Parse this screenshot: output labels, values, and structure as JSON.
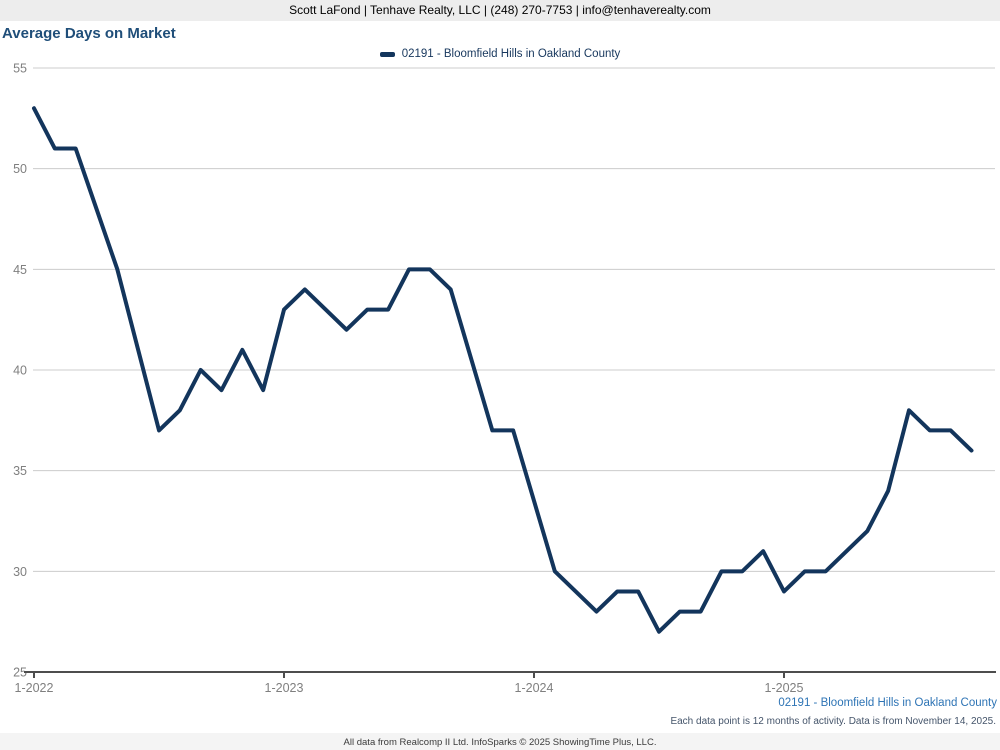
{
  "header": {
    "contact_line": "Scott LaFond | Tenhave Realty, LLC | (248) 270-7753 | info@tenhaverealty.com"
  },
  "title": "Average Days on Market",
  "legend": {
    "label": "02191 - Bloomfield Hills in Oakland County"
  },
  "chart_data": {
    "type": "line",
    "title": "Average Days on Market",
    "series_name": "02191 - Bloomfield Hills in Oakland County",
    "x": [
      "1-2022",
      "2-2022",
      "3-2022",
      "4-2022",
      "5-2022",
      "6-2022",
      "7-2022",
      "8-2022",
      "9-2022",
      "10-2022",
      "11-2022",
      "12-2022",
      "1-2023",
      "2-2023",
      "3-2023",
      "4-2023",
      "5-2023",
      "6-2023",
      "7-2023",
      "8-2023",
      "9-2023",
      "10-2023",
      "11-2023",
      "12-2023",
      "1-2024",
      "2-2024",
      "3-2024",
      "4-2024",
      "5-2024",
      "6-2024",
      "7-2024",
      "8-2024",
      "9-2024",
      "10-2024",
      "11-2024",
      "12-2024",
      "1-2025",
      "2-2025",
      "3-2025",
      "4-2025",
      "5-2025",
      "6-2025",
      "7-2025",
      "8-2025",
      "9-2025",
      "10-2025"
    ],
    "values": [
      53,
      51,
      51,
      48,
      45,
      41,
      37,
      38,
      40,
      39,
      41,
      39,
      43,
      44,
      43,
      42,
      43,
      43,
      45,
      45,
      44,
      40.5,
      37,
      37,
      33.5,
      30,
      29,
      28,
      29,
      29,
      27,
      28,
      28,
      30,
      30,
      31,
      29,
      30,
      30,
      31,
      32,
      34,
      38,
      37,
      37,
      36
    ],
    "ylim": [
      25,
      55
    ],
    "yticks": [
      25,
      30,
      35,
      40,
      45,
      50,
      55
    ],
    "xtick_labels": [
      "1-2022",
      "1-2023",
      "1-2024",
      "1-2025"
    ],
    "xtick_positions": [
      0,
      12,
      24,
      36
    ],
    "grid": "horizontal",
    "legend_position": "top-center",
    "line_color": "#13355c"
  },
  "colors": {
    "accent_navy": "#1f4e79",
    "legend_text": "#17375d",
    "line": "#13355c",
    "link_blue": "#2e74b5",
    "grid": "#cccccc",
    "axis": "#4d4d4d",
    "tick_label": "#7f7f7f",
    "header_bg": "#ededed"
  },
  "annotations": {
    "series_footer": "02191 - Bloomfield Hills in Oakland County",
    "data_note": "Each data point is 12 months of activity. Data is from November 14, 2025.",
    "attribution": "All data from Realcomp II Ltd. InfoSparks © 2025 ShowingTime Plus, LLC."
  }
}
